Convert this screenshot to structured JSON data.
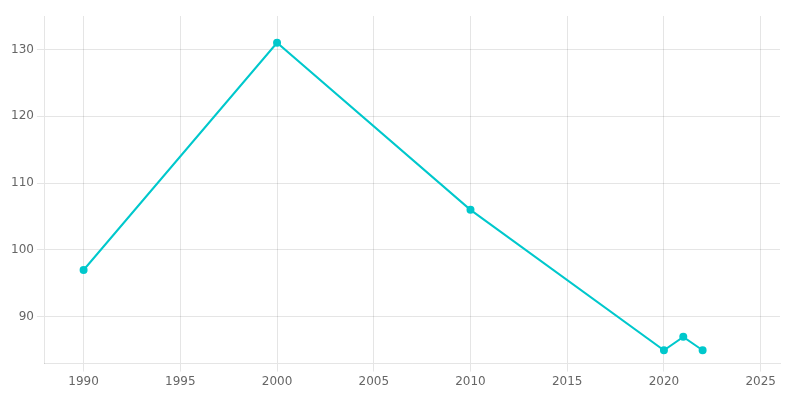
{
  "chart_data": {
    "type": "line",
    "x": [
      1990,
      2000,
      2010,
      2020,
      2021,
      2022
    ],
    "values": [
      97,
      131,
      106,
      85,
      87,
      85
    ],
    "color": "#00c8cc",
    "marker": "circle",
    "xlim": [
      1988,
      2026
    ],
    "ylim": [
      83,
      135
    ],
    "xticks": [
      1990,
      1995,
      2000,
      2005,
      2010,
      2015,
      2020,
      2025
    ],
    "yticks": [
      90,
      100,
      110,
      120,
      130
    ],
    "grid": true
  }
}
